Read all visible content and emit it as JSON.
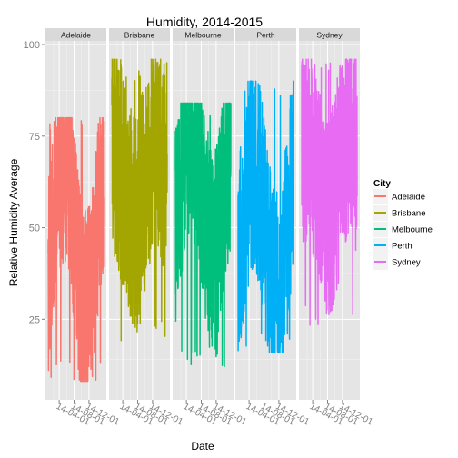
{
  "chart_data": {
    "type": "line",
    "faceted_by": "City",
    "title": "Humidity, 2014-2015",
    "xlabel": "Date",
    "ylabel": "Relative Humidity Average",
    "ylim": [
      3,
      101
    ],
    "yticks": [
      25,
      50,
      75,
      100
    ],
    "grid": true,
    "x_tick_labels": [
      "14-04-01",
      "14-08-01",
      "14-12-01"
    ],
    "x_tick_dates": [
      "2014-04-01",
      "2014-08-01",
      "2014-12-01"
    ],
    "x_range": [
      "2014-01-01",
      "2015-03-31"
    ],
    "facets": [
      {
        "name": "Adelaide",
        "color": "#F8766D",
        "min": 8,
        "max": 80,
        "mean": 48,
        "amp": 20,
        "phase": 0.35
      },
      {
        "name": "Brisbane",
        "color": "#A3A500",
        "min": 19,
        "max": 96,
        "mean": 62,
        "amp": 10,
        "phase": 0.0
      },
      {
        "name": "Melbourne",
        "color": "#00BF7D",
        "min": 12,
        "max": 84,
        "mean": 60,
        "amp": 15,
        "phase": 0.35
      },
      {
        "name": "Perth",
        "color": "#00B0F6",
        "min": 16,
        "max": 90,
        "mean": 50,
        "amp": 17,
        "phase": 0.35
      },
      {
        "name": "Sydney",
        "color": "#E76BF3",
        "min": 23,
        "max": 96,
        "mean": 64,
        "amp": 10,
        "phase": 0.1
      }
    ],
    "legend": {
      "title": "City",
      "position": "right",
      "entries": [
        "Adelaide",
        "Brisbane",
        "Melbourne",
        "Perth",
        "Sydney"
      ]
    }
  }
}
